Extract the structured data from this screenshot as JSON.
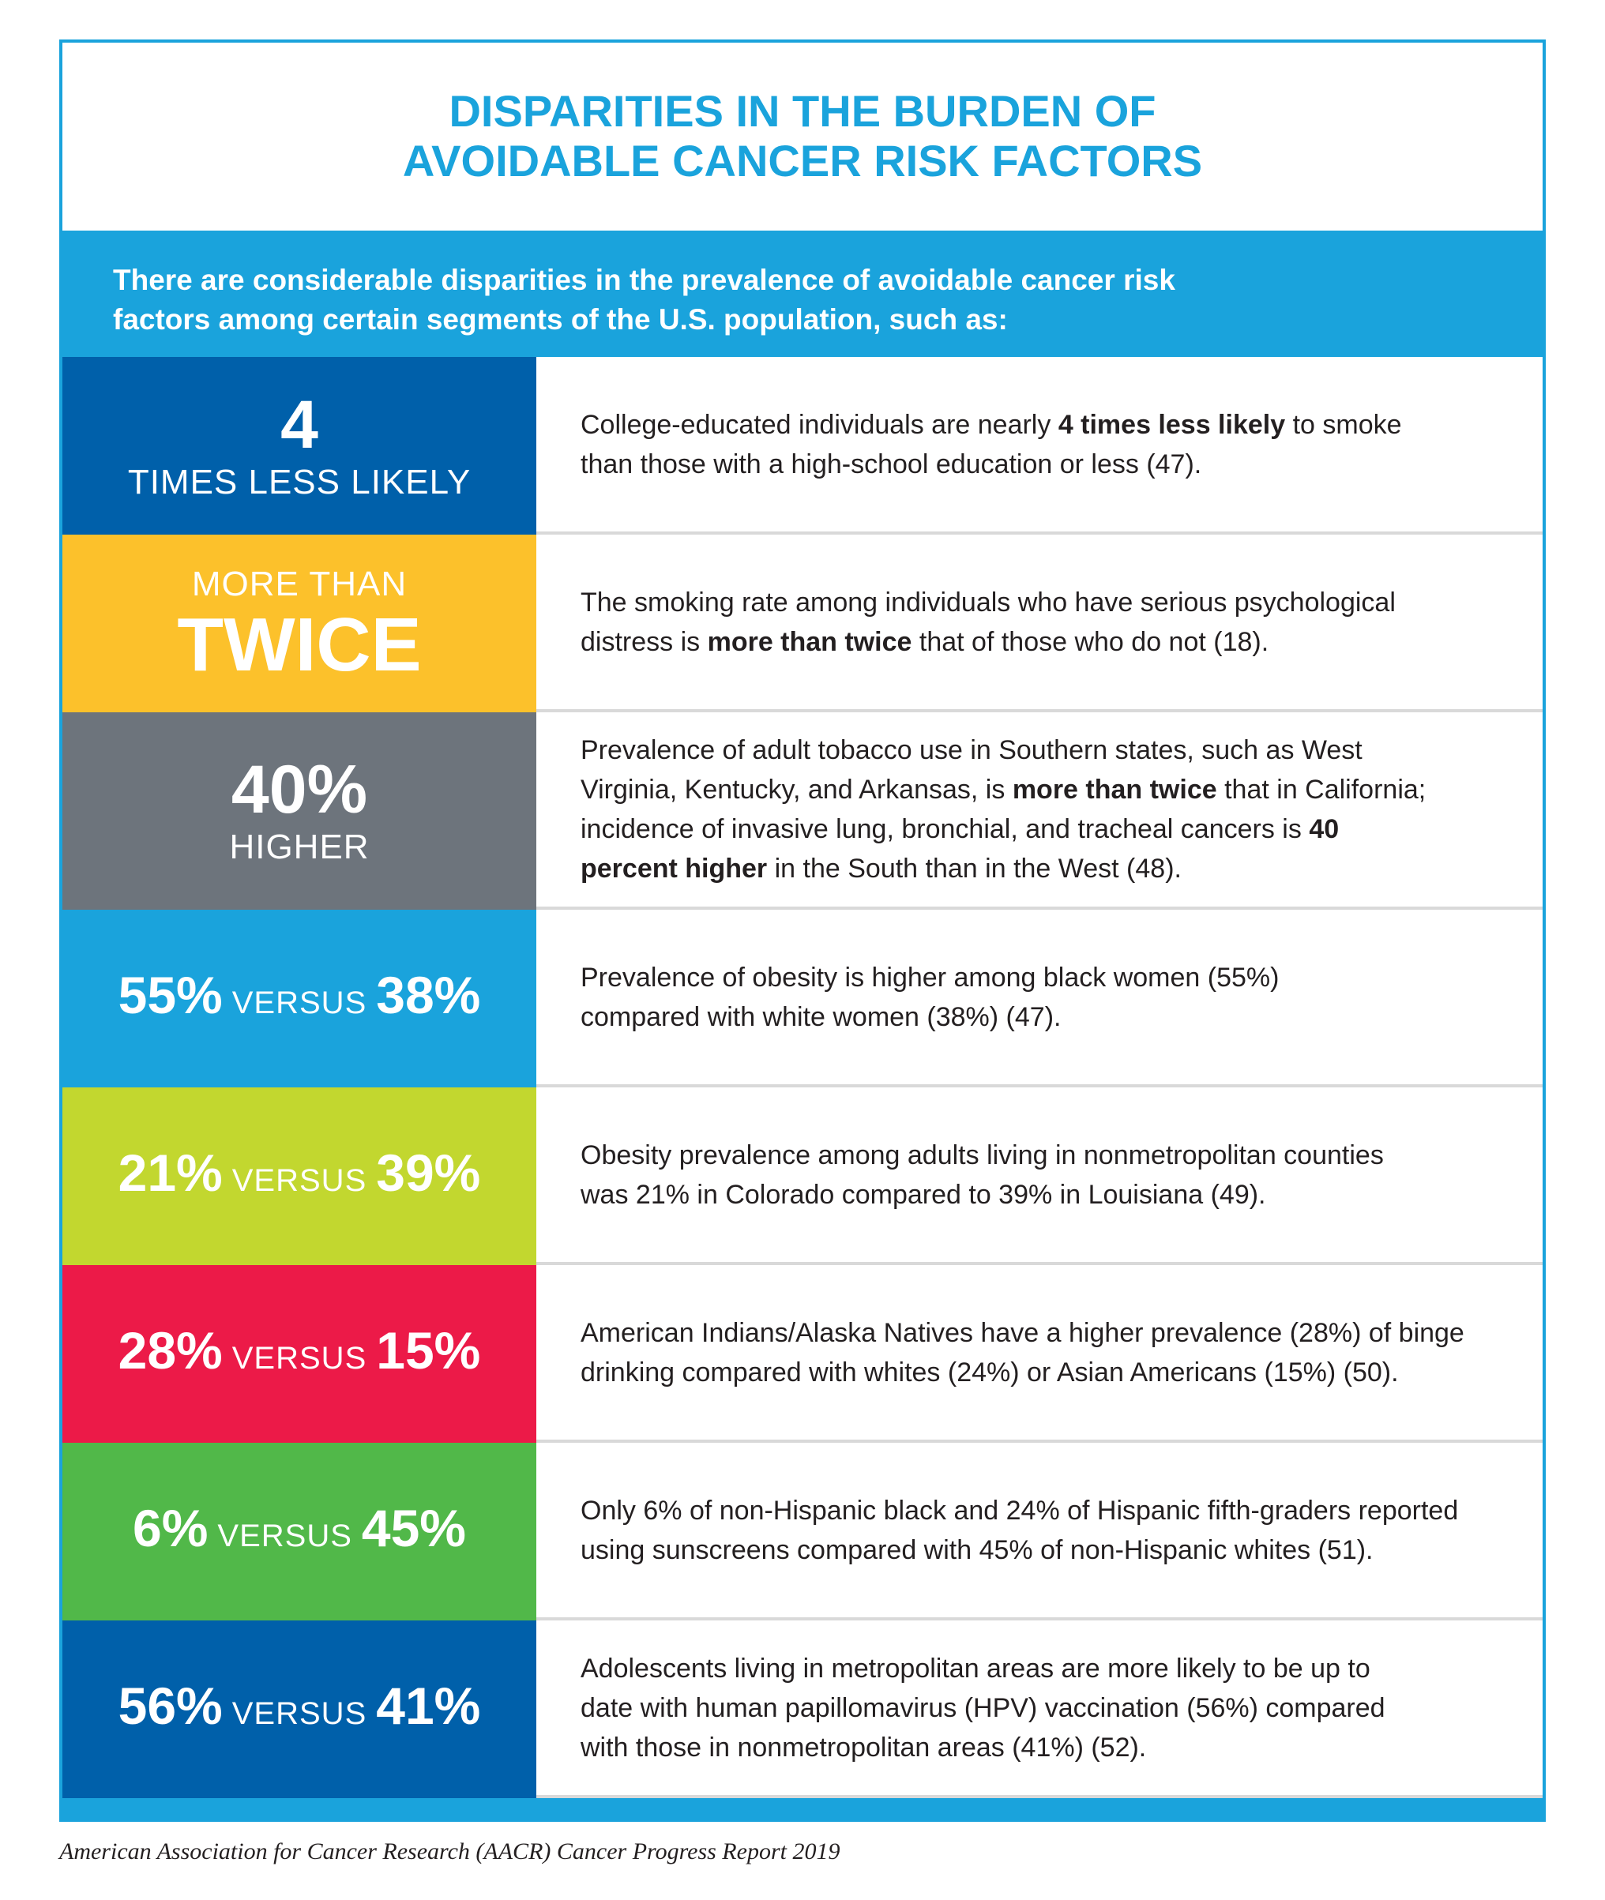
{
  "colors": {
    "accent_blue": "#1aa3dc",
    "navy": "#0060aa",
    "yellow": "#fcc12b",
    "gray": "#6d747c",
    "sky": "#1aa3dc",
    "lime": "#c2d72f",
    "red": "#ec1a48",
    "green": "#51b849"
  },
  "title": {
    "line1": "DISPARITIES IN THE BURDEN OF",
    "line2": "AVOIDABLE CANCER RISK FACTORS"
  },
  "intro": {
    "line1": "There are considerable disparities in the prevalence of avoidable cancer risk",
    "line2": "factors among certain segments of the U.S. population, such as:"
  },
  "rows": [
    {
      "stat_top": "4",
      "stat_bottom": "TIMES LESS LIKELY",
      "l1a": "College-educated individuals are nearly ",
      "l1b": "4 times less likely",
      "l1c": " to smoke",
      "l2": "than those with a high-school education or less (47)."
    },
    {
      "stat_top": "MORE THAN",
      "stat_bottom": "TWICE",
      "l1": "The smoking rate among individuals who have serious psychological",
      "l2a": "distress is ",
      "l2b": "more than twice",
      "l2c": " that of those who do not (18)."
    },
    {
      "stat_top": "40%",
      "stat_bottom": "HIGHER",
      "l1": "Prevalence of adult tobacco use in Southern states, such as West",
      "l2a": "Virginia, Kentucky, and Arkansas, is ",
      "l2b": "more than twice",
      "l2c": " that in California;",
      "l3a": "incidence of invasive lung, bronchial, and tracheal cancers is ",
      "l3b": "40",
      "l4a": "percent higher",
      "l4b": " in the South than in the West (48)."
    },
    {
      "stat_a": "55%",
      "versus": "VERSUS",
      "stat_b": "38%",
      "l1": "Prevalence of obesity is higher among black women (55%)",
      "l2": "compared with white women (38%) (47)."
    },
    {
      "stat_a": "21%",
      "versus": "VERSUS",
      "stat_b": "39%",
      "l1": "Obesity prevalence among adults living in nonmetropolitan counties",
      "l2": "was 21% in Colorado compared to 39% in Louisiana (49)."
    },
    {
      "stat_a": "28%",
      "versus": "VERSUS",
      "stat_b": "15%",
      "l1": "American Indians/Alaska Natives have a higher prevalence (28%) of binge",
      "l2": "drinking compared with whites (24%) or Asian Americans (15%) (50)."
    },
    {
      "stat_a": "6%",
      "versus": "VERSUS",
      "stat_b": "45%",
      "l1": "Only 6% of non-Hispanic black and 24% of Hispanic fifth-graders reported",
      "l2": "using sunscreens compared with 45% of non-Hispanic whites (51)."
    },
    {
      "stat_a": "56%",
      "versus": "VERSUS",
      "stat_b": "41%",
      "l1": "Adolescents living in metropolitan areas are more likely to be up to",
      "l2": "date with human papillomavirus (HPV) vaccination (56%) compared",
      "l3": "with those in nonmetropolitan areas (41%) (52)."
    }
  ],
  "source": "American Association for Cancer Research (AACR) Cancer Progress Report 2019"
}
